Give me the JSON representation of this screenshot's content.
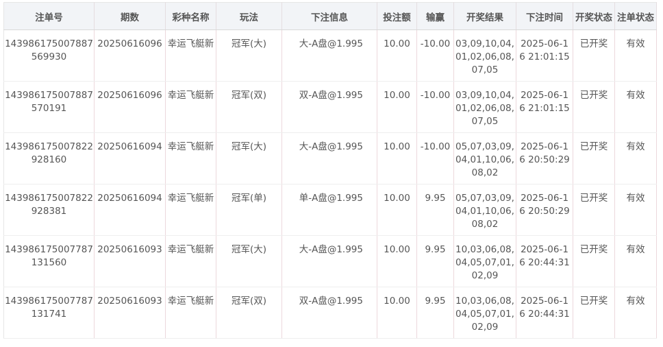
{
  "columns": [
    "注单号",
    "期数",
    "彩种名称",
    "玩法",
    "下注信息",
    "投注额",
    "输赢",
    "开奖结果",
    "下注时间",
    "开奖状态",
    "注单状态"
  ],
  "rows": [
    [
      "143986175007887569930",
      "20250616096",
      "幸运飞艇新",
      "冠军(大)",
      "大-A盘@1.995",
      "10.00",
      "-10.00",
      "03,09,10,04,01,02,06,08,07,05",
      "2025-06-16 21:01:15",
      "已开奖",
      "有效"
    ],
    [
      "143986175007887570191",
      "20250616096",
      "幸运飞艇新",
      "冠军(双)",
      "双-A盘@1.995",
      "10.00",
      "-10.00",
      "03,09,10,04,01,02,06,08,07,05",
      "2025-06-16 21:01:15",
      "已开奖",
      "有效"
    ],
    [
      "143986175007822928160",
      "20250616094",
      "幸运飞艇新",
      "冠军(大)",
      "大-A盘@1.995",
      "10.00",
      "-10.00",
      "05,07,03,09,04,01,10,06,08,02",
      "2025-06-16 20:50:29",
      "已开奖",
      "有效"
    ],
    [
      "143986175007822928381",
      "20250616094",
      "幸运飞艇新",
      "冠军(单)",
      "单-A盘@1.995",
      "10.00",
      "9.95",
      "05,07,03,09,04,01,10,06,08,02",
      "2025-06-16 20:50:29",
      "已开奖",
      "有效"
    ],
    [
      "143986175007787131560",
      "20250616093",
      "幸运飞艇新",
      "冠军(大)",
      "大-A盘@1.995",
      "10.00",
      "9.95",
      "10,03,06,08,04,05,07,01,02,09",
      "2025-06-16 20:44:31",
      "已开奖",
      "有效"
    ],
    [
      "143986175007787131741",
      "20250616093",
      "幸运飞艇新",
      "冠军(双)",
      "双-A盘@1.995",
      "10.00",
      "9.95",
      "10,03,06,08,04,05,07,01,02,09",
      "2025-06-16 20:44:31",
      "已开奖",
      "有效"
    ]
  ]
}
